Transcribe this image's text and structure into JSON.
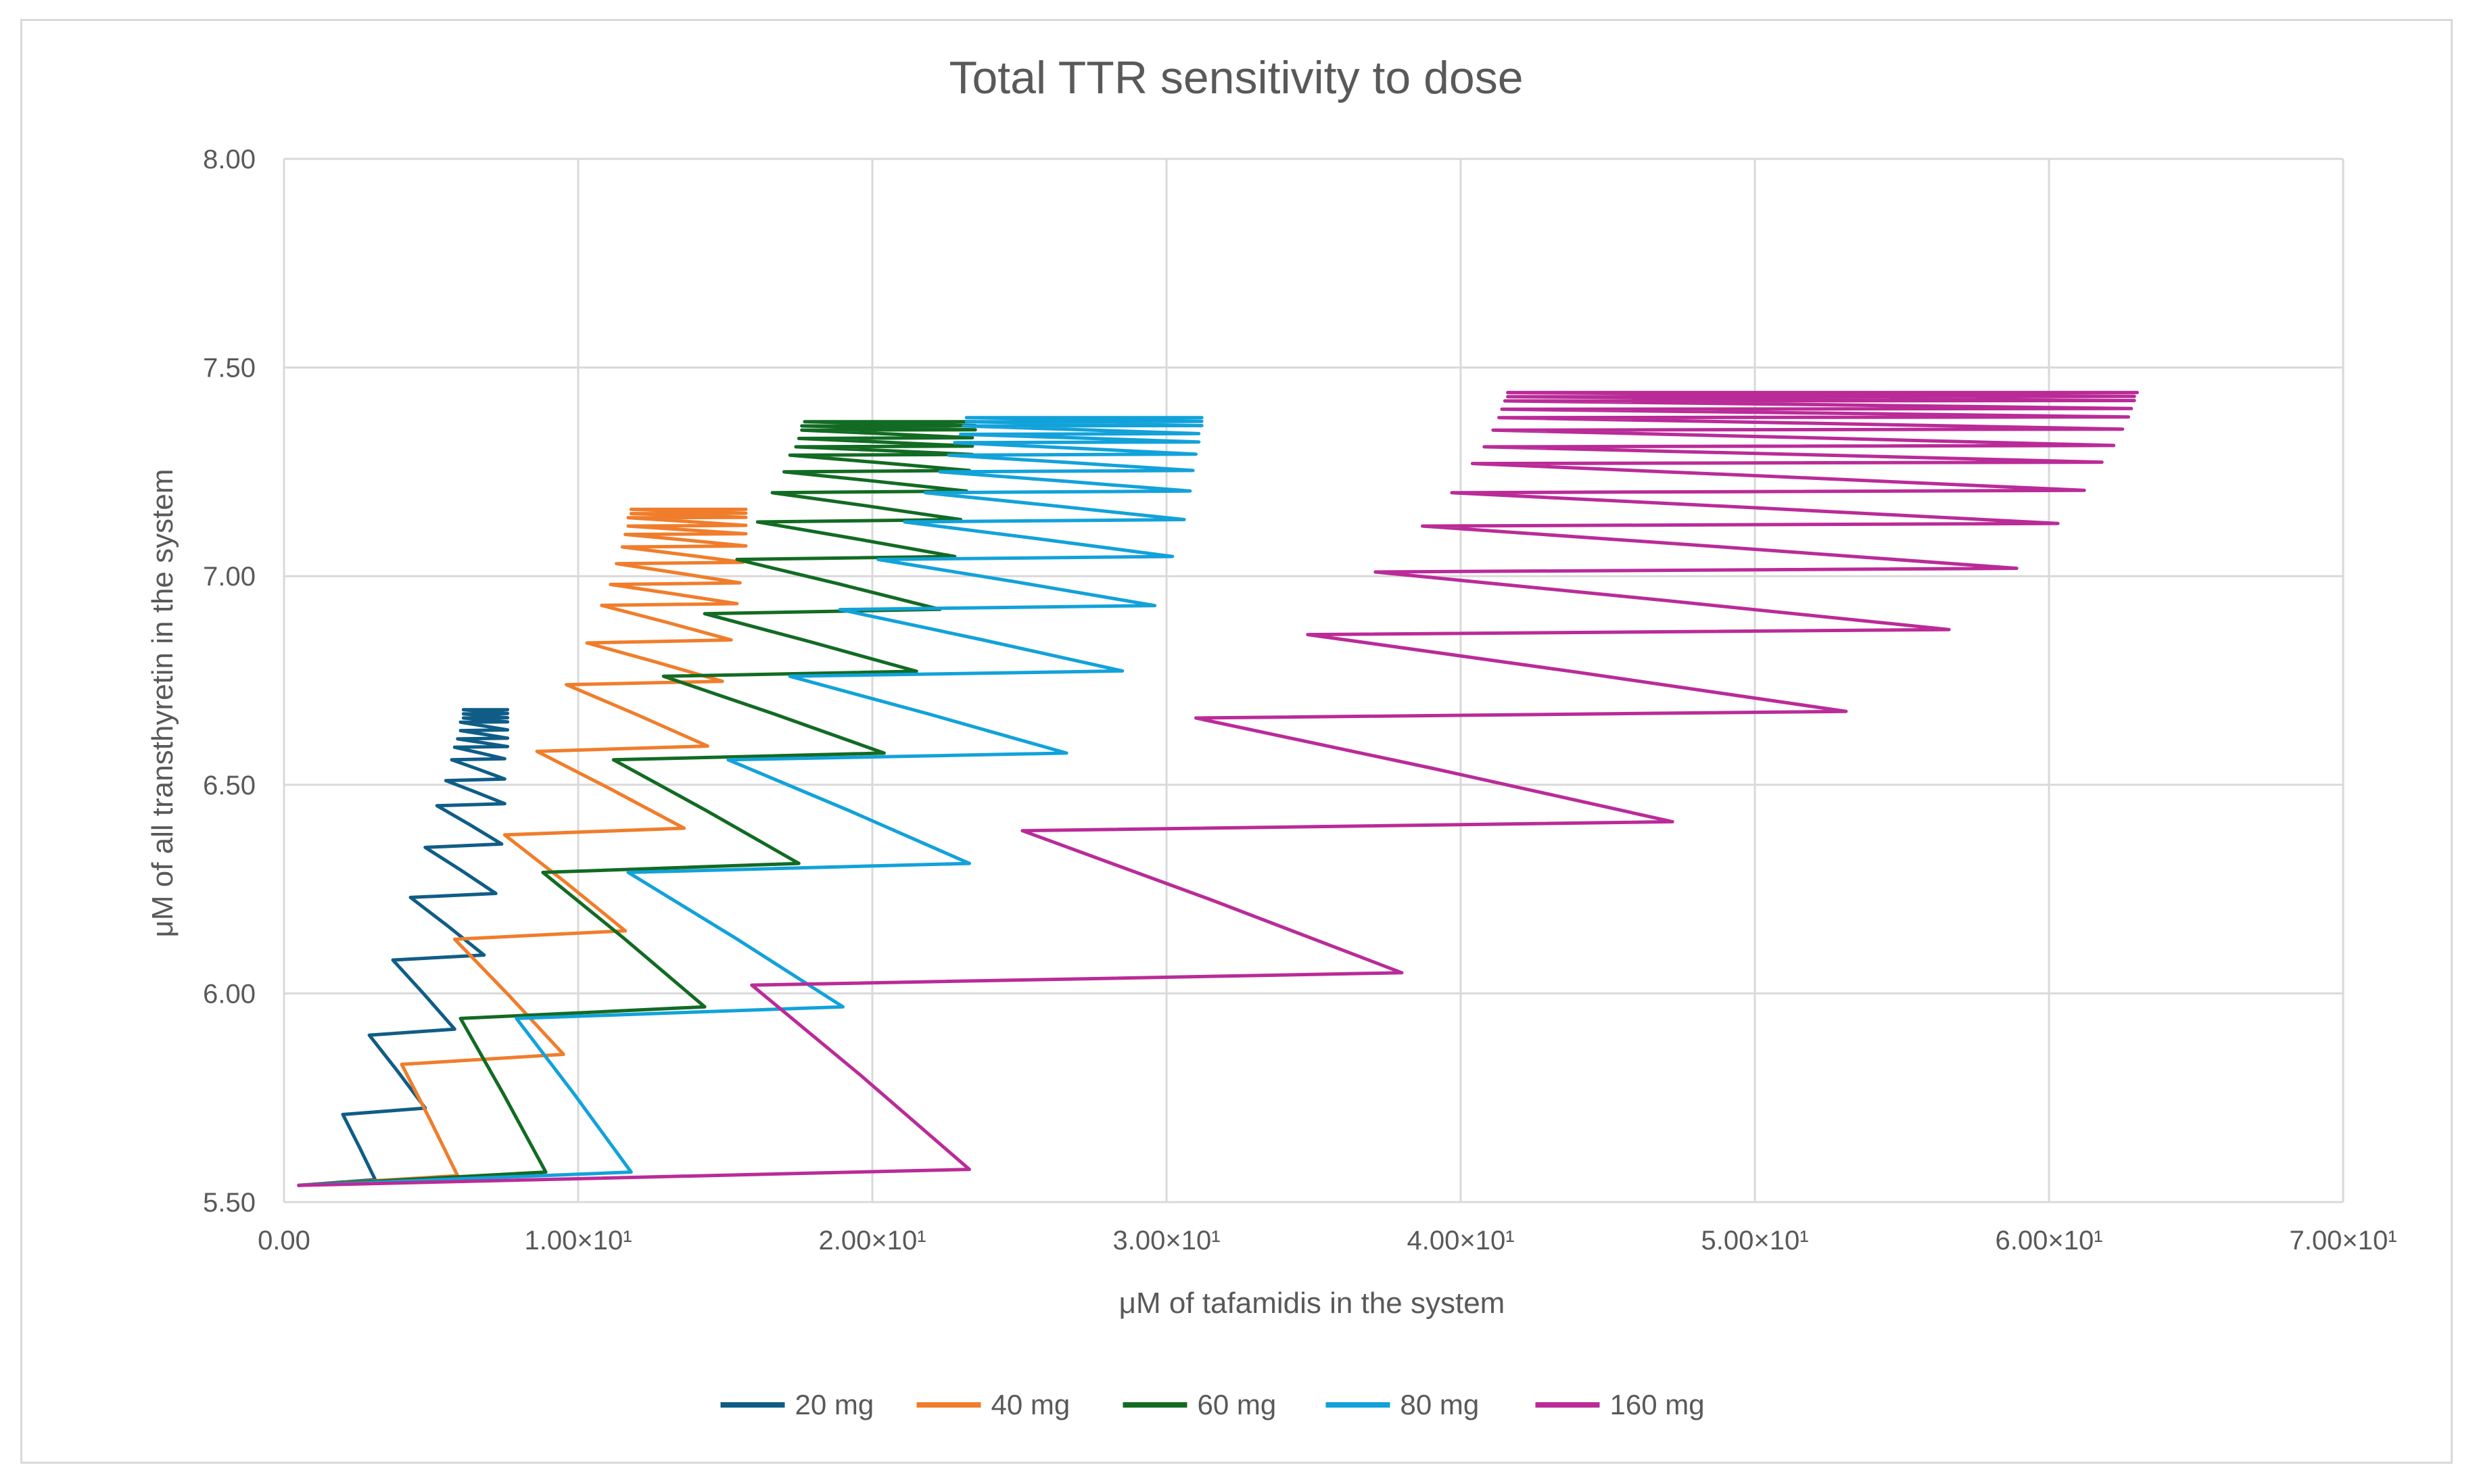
{
  "chart_data": {
    "type": "line",
    "title": "Total TTR sensitivity to dose",
    "xlabel": "μM of tafamidis in the system",
    "ylabel": "μM of all transthyretin in the system",
    "xlim": [
      0,
      70
    ],
    "ylim": [
      5.5,
      8.0
    ],
    "x_ticks": [
      "0.00",
      "1.00×10¹",
      "2.00×10¹",
      "3.00×10¹",
      "4.00×10¹",
      "5.00×10¹",
      "6.00×10¹",
      "7.00×10¹"
    ],
    "y_ticks": [
      "5.50",
      "6.00",
      "6.50",
      "7.00",
      "7.50",
      "8.00"
    ],
    "grid": true,
    "legend_position": "bottom",
    "series": [
      {
        "name": "20 mg",
        "color": "#0f5d87",
        "peaks": [
          3.1,
          4.8,
          5.8,
          6.8,
          7.2,
          7.4,
          7.5,
          7.5,
          7.5,
          7.6,
          7.6,
          7.6,
          7.6,
          7.6,
          7.6,
          7.6
        ],
        "troughs": [
          0.5,
          2.0,
          2.9,
          3.7,
          4.3,
          4.8,
          5.2,
          5.5,
          5.7,
          5.8,
          5.9,
          6.0,
          6.0,
          6.1,
          6.1,
          6.1
        ],
        "levels": [
          5.54,
          5.71,
          5.9,
          6.08,
          6.23,
          6.35,
          6.45,
          6.51,
          6.56,
          6.59,
          6.61,
          6.63,
          6.65,
          6.66,
          6.67,
          6.68
        ]
      },
      {
        "name": "40 mg",
        "color": "#f07d2b",
        "peaks": [
          5.9,
          9.5,
          11.6,
          13.6,
          14.4,
          14.9,
          15.2,
          15.4,
          15.5,
          15.6,
          15.7,
          15.7,
          15.7,
          15.7,
          15.7,
          15.7
        ],
        "troughs": [
          0.5,
          4.0,
          5.8,
          7.5,
          8.6,
          9.6,
          10.3,
          10.8,
          11.1,
          11.3,
          11.5,
          11.6,
          11.7,
          11.7,
          11.8,
          11.8
        ],
        "levels": [
          5.54,
          5.83,
          6.13,
          6.38,
          6.58,
          6.74,
          6.84,
          6.93,
          6.98,
          7.03,
          7.07,
          7.1,
          7.12,
          7.14,
          7.15,
          7.16
        ]
      },
      {
        "name": "60 mg",
        "color": "#126b23",
        "peaks": [
          8.9,
          14.3,
          17.5,
          20.4,
          21.5,
          22.3,
          22.8,
          23.0,
          23.2,
          23.3,
          23.4,
          23.4,
          23.4,
          23.5,
          23.5,
          23.5
        ],
        "troughs": [
          0.5,
          6.0,
          8.8,
          11.2,
          12.9,
          14.3,
          15.4,
          16.1,
          16.6,
          17.0,
          17.2,
          17.4,
          17.5,
          17.6,
          17.6,
          17.7
        ],
        "levels": [
          5.54,
          5.94,
          6.29,
          6.56,
          6.76,
          6.91,
          7.04,
          7.13,
          7.2,
          7.25,
          7.29,
          7.31,
          7.33,
          7.35,
          7.36,
          7.37
        ]
      },
      {
        "name": "80 mg",
        "color": "#12a2da",
        "peaks": [
          11.8,
          19.0,
          23.3,
          26.6,
          28.5,
          29.6,
          30.2,
          30.6,
          30.8,
          30.9,
          31.0,
          31.1,
          31.1,
          31.2,
          31.2,
          31.2
        ],
        "troughs": [
          0.5,
          7.9,
          11.7,
          15.1,
          17.2,
          18.9,
          20.2,
          21.1,
          21.8,
          22.3,
          22.6,
          22.8,
          23.0,
          23.1,
          23.2,
          23.2
        ],
        "levels": [
          5.54,
          5.94,
          6.29,
          6.56,
          6.76,
          6.92,
          7.04,
          7.13,
          7.2,
          7.25,
          7.29,
          7.32,
          7.34,
          7.36,
          7.37,
          7.38
        ]
      },
      {
        "name": "160 mg",
        "color": "#ba2b98",
        "peaks": [
          23.3,
          38.0,
          47.2,
          53.1,
          56.6,
          58.9,
          60.3,
          61.2,
          61.8,
          62.2,
          62.5,
          62.7,
          62.8,
          62.9,
          62.9,
          63.0
        ],
        "troughs": [
          0.5,
          15.9,
          25.1,
          31.0,
          34.8,
          37.1,
          38.7,
          39.7,
          40.4,
          40.8,
          41.1,
          41.3,
          41.4,
          41.5,
          41.6,
          41.6
        ],
        "levels": [
          5.54,
          6.02,
          6.39,
          6.66,
          6.86,
          7.01,
          7.12,
          7.2,
          7.27,
          7.31,
          7.35,
          7.38,
          7.4,
          7.42,
          7.43,
          7.44
        ]
      }
    ]
  }
}
